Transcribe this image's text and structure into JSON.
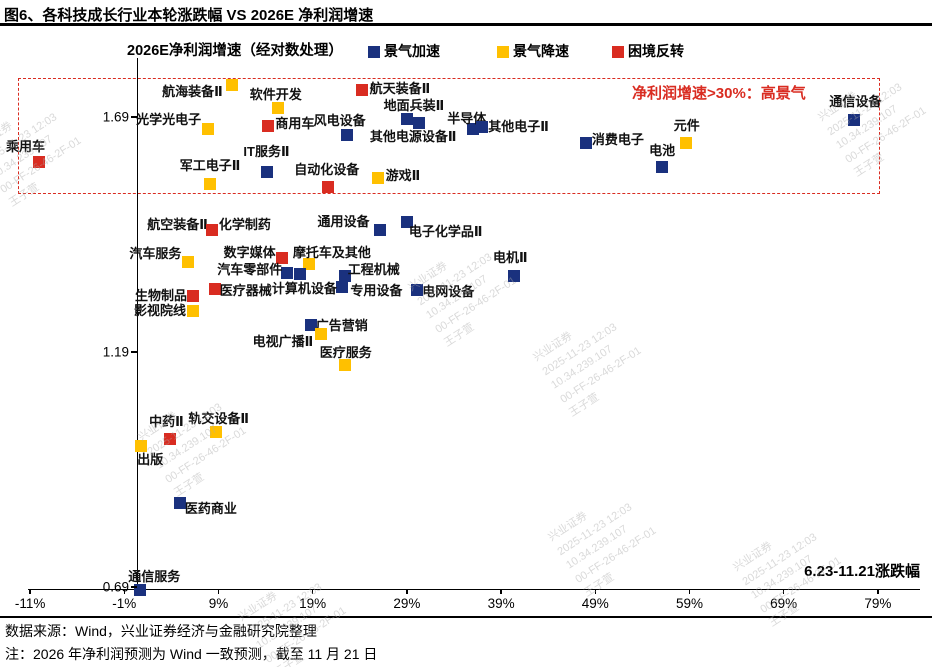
{
  "title": "图6、各科技成长行业本轮涨跌幅 VS 2026E 净利润增速",
  "legend": {
    "axis_title": "2026E净利润增速（经对数处理）",
    "items": [
      {
        "key": "acc",
        "label": "景气加速",
        "color": "#1A317E"
      },
      {
        "key": "dec",
        "label": "景气降速",
        "color": "#FFC000"
      },
      {
        "key": "rev",
        "label": "困境反转",
        "color": "#D92C21"
      }
    ]
  },
  "annotation": "净利润增速>30%：高景气",
  "x_caption": "6.23-11.21涨跌幅",
  "footer": {
    "source": "数据来源：Wind，兴业证券经济与金融研究院整理",
    "note": "注：2026 年净利润预测为 Wind 一致预测，截至 11 月 21 日"
  },
  "watermark": "兴业证券\n2025-11-23 12:03\n10.34.239.107\n00-FF-26-46-2F-01\n王子萱",
  "chart_data": {
    "type": "scatter",
    "title": "各科技成长行业本轮涨跌幅 VS 2026E 净利润增速",
    "xlabel": "6.23-11.21涨跌幅",
    "ylabel": "2026E净利润增速（经对数处理）",
    "xlim": [
      -11,
      79
    ],
    "ylim": [
      0.69,
      1.8
    ],
    "grid": false,
    "legend_position": "top",
    "x_ticks": [
      {
        "label": "-11%",
        "value": -11
      },
      {
        "label": "-1%",
        "value": -1
      },
      {
        "label": "9%",
        "value": 9
      },
      {
        "label": "19%",
        "value": 19
      },
      {
        "label": "29%",
        "value": 29
      },
      {
        "label": "39%",
        "value": 39
      },
      {
        "label": "49%",
        "value": 49
      },
      {
        "label": "59%",
        "value": 59
      },
      {
        "label": "69%",
        "value": 69
      },
      {
        "label": "79%",
        "value": 79
      }
    ],
    "y_ticks": [
      {
        "label": "1.69",
        "value": 1.69
      },
      {
        "label": "1.19",
        "value": 1.19
      },
      {
        "label": "0.69",
        "value": 0.69
      }
    ],
    "points": [
      {
        "name": "乘用车",
        "series": "rev",
        "x": -10.1,
        "y": 1.594,
        "lab": [
          -13,
          -15,
          "c"
        ]
      },
      {
        "name": "航海装备Ⅱ",
        "series": "dec",
        "x": 10.4,
        "y": 1.758,
        "lab": [
          -9,
          7,
          "r"
        ]
      },
      {
        "name": "软件开发",
        "series": "dec",
        "x": 15.3,
        "y": 1.709,
        "lab": [
          -2,
          -13,
          "c"
        ]
      },
      {
        "name": "航天装备Ⅱ",
        "series": "rev",
        "x": 24.2,
        "y": 1.747,
        "lab": [
          8,
          -1,
          "l"
        ]
      },
      {
        "name": "光学光电子",
        "series": "dec",
        "x": 7.9,
        "y": 1.664,
        "lab": [
          -7,
          -9,
          "r"
        ]
      },
      {
        "name": "商用车",
        "series": "rev",
        "x": 14.3,
        "y": 1.671,
        "lab": [
          7,
          -2,
          "l"
        ]
      },
      {
        "name": "风电设备",
        "series": "acc",
        "x": 22.6,
        "y": 1.652,
        "lab": [
          -7,
          -14,
          "c"
        ]
      },
      {
        "name": "地面兵装Ⅱ",
        "series": "acc",
        "x": 29.0,
        "y": 1.686,
        "lab": [
          7,
          -13,
          "c"
        ]
      },
      {
        "name": "其他电源设备Ⅱ",
        "series": "acc",
        "x": 30.3,
        "y": 1.677,
        "lab": [
          -6,
          14,
          "c"
        ]
      },
      {
        "name": "半导体",
        "series": "acc",
        "x": 36.0,
        "y": 1.664,
        "lab": [
          -6,
          -10,
          "c"
        ]
      },
      {
        "name": "其他电子Ⅱ",
        "series": "acc",
        "x": 37.0,
        "y": 1.669,
        "lab": [
          6,
          0,
          "l"
        ]
      },
      {
        "name": "IT服务Ⅱ",
        "series": "acc",
        "x": 14.2,
        "y": 1.573,
        "lab": [
          -1,
          -20,
          "c"
        ]
      },
      {
        "name": "军工电子Ⅱ",
        "series": "dec",
        "x": 8.1,
        "y": 1.547,
        "lab": [
          0,
          -18,
          "c"
        ]
      },
      {
        "name": "自动化设备",
        "series": "rev",
        "x": 20.6,
        "y": 1.541,
        "lab": [
          -1,
          -17,
          "c"
        ]
      },
      {
        "name": "游戏Ⅱ",
        "series": "dec",
        "x": 25.9,
        "y": 1.56,
        "lab": [
          8,
          -2,
          "l"
        ]
      },
      {
        "name": "消费电子",
        "series": "acc",
        "x": 48.0,
        "y": 1.635,
        "lab": [
          6,
          -3,
          "l"
        ]
      },
      {
        "name": "元件",
        "series": "dec",
        "x": 58.6,
        "y": 1.635,
        "lab": [
          1,
          -17,
          "c"
        ]
      },
      {
        "name": "电池",
        "series": "acc",
        "x": 56.1,
        "y": 1.584,
        "lab": [
          0,
          -16,
          "c"
        ]
      },
      {
        "name": "通信设备",
        "series": "acc",
        "x": 76.5,
        "y": 1.684,
        "lab": [
          1,
          -18,
          "c"
        ]
      },
      {
        "name": "航空装备Ⅱ",
        "series": "rev",
        "x": 8.3,
        "y": 1.45,
        "lab": [
          -4,
          -5,
          "r"
        ]
      },
      {
        "name": "化学制药",
        "series": "rev",
        "x": 8.3,
        "y": 1.45,
        "lab": [
          7,
          -5,
          "l"
        ]
      },
      {
        "name": "通用设备",
        "series": "acc",
        "x": 26.1,
        "y": 1.45,
        "lab": [
          -10,
          -8,
          "r"
        ]
      },
      {
        "name": "电子化学品Ⅱ",
        "series": "acc",
        "x": 29.0,
        "y": 1.467,
        "lab": [
          2,
          10,
          "l"
        ]
      },
      {
        "name": "数字媒体",
        "series": "rev",
        "x": 15.7,
        "y": 1.39,
        "lab": [
          -6,
          -5,
          "r"
        ]
      },
      {
        "name": "摩托车及其他",
        "series": "dec",
        "x": 18.6,
        "y": 1.377,
        "lab": [
          -16,
          -11,
          "l"
        ]
      },
      {
        "name": "汽车服务",
        "series": "dec",
        "x": 5.8,
        "y": 1.382,
        "lab": [
          -7,
          -8,
          "r"
        ]
      },
      {
        "name": "汽车零部件",
        "series": "acc",
        "x": 16.3,
        "y": 1.358,
        "lab": [
          -5,
          -3,
          "r"
        ]
      },
      {
        "name": "专用设备",
        "series": "acc",
        "x": 17.7,
        "y": 1.356,
        "lab": [
          50,
          17,
          "l"
        ]
      },
      {
        "name": "工程机械",
        "series": "acc",
        "x": 22.4,
        "y": 1.352,
        "lab": [
          3,
          -6,
          "l"
        ]
      },
      {
        "name": "计算机设备",
        "series": "acc",
        "x": 22.1,
        "y": 1.328,
        "lab": [
          -5,
          2,
          "r"
        ]
      },
      {
        "name": "电网设备",
        "series": "acc",
        "x": 30.1,
        "y": 1.322,
        "lab": [
          5,
          2,
          "l"
        ]
      },
      {
        "name": "医疗器械",
        "series": "rev",
        "x": 8.6,
        "y": 1.324,
        "lab": [
          5,
          2,
          "l"
        ]
      },
      {
        "name": "电机Ⅱ",
        "series": "acc",
        "x": 40.4,
        "y": 1.352,
        "lab": [
          -4,
          -18,
          "c"
        ]
      },
      {
        "name": "生物制品",
        "series": "rev",
        "x": 6.3,
        "y": 1.309,
        "lab": [
          -6,
          0,
          "r"
        ]
      },
      {
        "name": "影视院线",
        "series": "dec",
        "x": 6.3,
        "y": 1.277,
        "lab": [
          -7,
          0,
          "r"
        ]
      },
      {
        "name": "广告营销",
        "series": "acc",
        "x": 18.8,
        "y": 1.247,
        "lab": [
          5,
          1,
          "l"
        ]
      },
      {
        "name": "电视广播Ⅱ",
        "series": "dec",
        "x": 19.9,
        "y": 1.228,
        "lab": [
          -8,
          8,
          "r"
        ]
      },
      {
        "name": "医疗服务",
        "series": "dec",
        "x": 22.4,
        "y": 1.162,
        "lab": [
          1,
          -12,
          "c"
        ]
      },
      {
        "name": "中药Ⅱ",
        "series": "rev",
        "x": 3.9,
        "y": 1.005,
        "lab": [
          -4,
          -17,
          "c"
        ]
      },
      {
        "name": "轨交设备Ⅱ",
        "series": "dec",
        "x": 8.7,
        "y": 1.02,
        "lab": [
          3,
          -13,
          "c"
        ]
      },
      {
        "name": "出版",
        "series": "dec",
        "x": 0.8,
        "y": 0.99,
        "lab": [
          -4,
          14,
          "l"
        ]
      },
      {
        "name": "医药商业",
        "series": "acc",
        "x": 4.9,
        "y": 0.869,
        "lab": [
          5,
          6,
          "l"
        ]
      },
      {
        "name": "通信服务",
        "series": "acc",
        "x": 0.7,
        "y": 0.684,
        "lab": [
          -12,
          -13,
          "l"
        ]
      }
    ]
  }
}
